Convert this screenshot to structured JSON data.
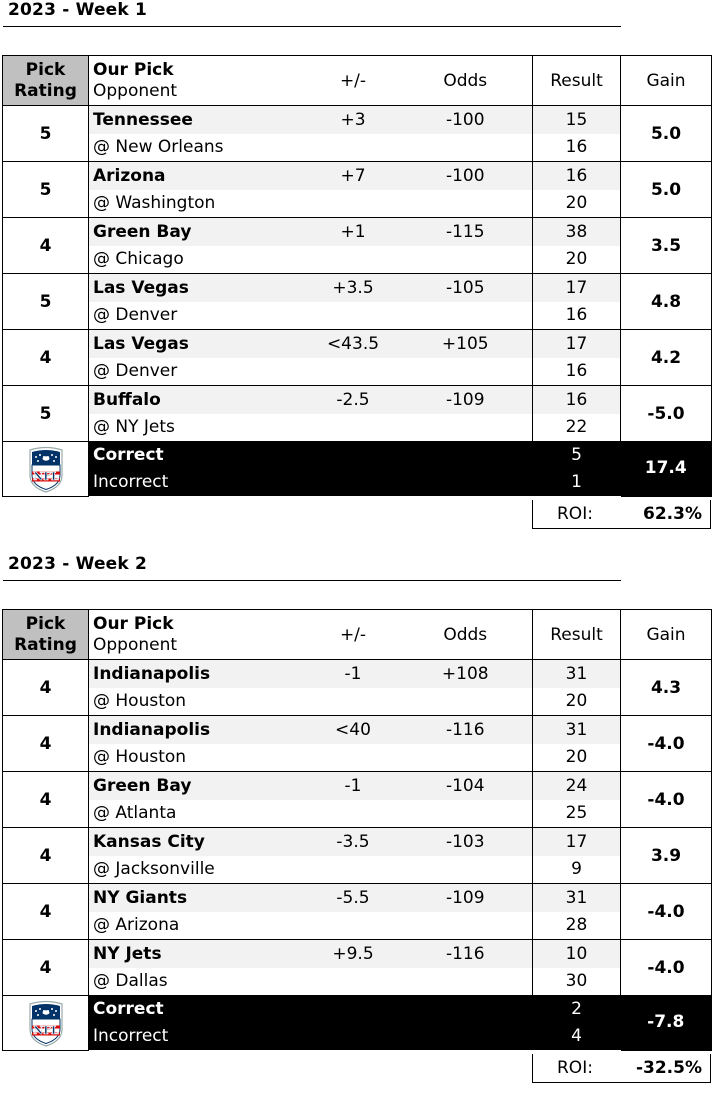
{
  "headers": {
    "rating_line1": "Pick",
    "rating_line2": "Rating",
    "pick_line1": "Our Pick",
    "pick_line2": "Opponent",
    "spread": "+/-",
    "odds": "Odds",
    "result": "Result",
    "gain": "Gain"
  },
  "summary_labels": {
    "correct": "Correct",
    "incorrect": "Incorrect",
    "roi": "ROI:"
  },
  "logo": {
    "icon": "nfl-shield-icon",
    "text": "NFL",
    "colors": {
      "navy": "#013369",
      "red": "#d50a0a"
    }
  },
  "weeks": [
    {
      "title": "2023 - Week 1",
      "picks": [
        {
          "rating": "5",
          "team": "Tennessee",
          "opponent": "@ New Orleans",
          "spread": "+3",
          "odds": "-100",
          "score_team": "15",
          "score_opp": "16",
          "gain": "5.0"
        },
        {
          "rating": "5",
          "team": "Arizona",
          "opponent": "@ Washington",
          "spread": "+7",
          "odds": "-100",
          "score_team": "16",
          "score_opp": "20",
          "gain": "5.0"
        },
        {
          "rating": "4",
          "team": "Green Bay",
          "opponent": "@ Chicago",
          "spread": "+1",
          "odds": "-115",
          "score_team": "38",
          "score_opp": "20",
          "gain": "3.5"
        },
        {
          "rating": "5",
          "team": "Las Vegas",
          "opponent": "@ Denver",
          "spread": "+3.5",
          "odds": "-105",
          "score_team": "17",
          "score_opp": "16",
          "gain": "4.8"
        },
        {
          "rating": "4",
          "team": "Las Vegas",
          "opponent": "@ Denver",
          "spread": "<43.5",
          "odds": "+105",
          "score_team": "17",
          "score_opp": "16",
          "gain": "4.2"
        },
        {
          "rating": "5",
          "team": "Buffalo",
          "opponent": "@ NY Jets",
          "spread": "-2.5",
          "odds": "-109",
          "score_team": "16",
          "score_opp": "22",
          "gain": "-5.0"
        }
      ],
      "correct": "5",
      "incorrect": "1",
      "total_gain": "17.4",
      "roi": "62.3%"
    },
    {
      "title": "2023 - Week 2",
      "picks": [
        {
          "rating": "4",
          "team": "Indianapolis",
          "opponent": "@ Houston",
          "spread": "-1",
          "odds": "+108",
          "score_team": "31",
          "score_opp": "20",
          "gain": "4.3"
        },
        {
          "rating": "4",
          "team": "Indianapolis",
          "opponent": "@ Houston",
          "spread": "<40",
          "odds": "-116",
          "score_team": "31",
          "score_opp": "20",
          "gain": "-4.0"
        },
        {
          "rating": "4",
          "team": "Green Bay",
          "opponent": "@ Atlanta",
          "spread": "-1",
          "odds": "-104",
          "score_team": "24",
          "score_opp": "25",
          "gain": "-4.0"
        },
        {
          "rating": "4",
          "team": "Kansas City",
          "opponent": "@ Jacksonville",
          "spread": "-3.5",
          "odds": "-103",
          "score_team": "17",
          "score_opp": "9",
          "gain": "3.9"
        },
        {
          "rating": "4",
          "team": "NY Giants",
          "opponent": "@ Arizona",
          "spread": "-5.5",
          "odds": "-109",
          "score_team": "31",
          "score_opp": "28",
          "gain": "-4.0"
        },
        {
          "rating": "4",
          "team": "NY Jets",
          "opponent": "@ Dallas",
          "spread": "+9.5",
          "odds": "-116",
          "score_team": "10",
          "score_opp": "30",
          "gain": "-4.0"
        }
      ],
      "correct": "2",
      "incorrect": "4",
      "total_gain": "-7.8",
      "roi": "-32.5%"
    }
  ]
}
